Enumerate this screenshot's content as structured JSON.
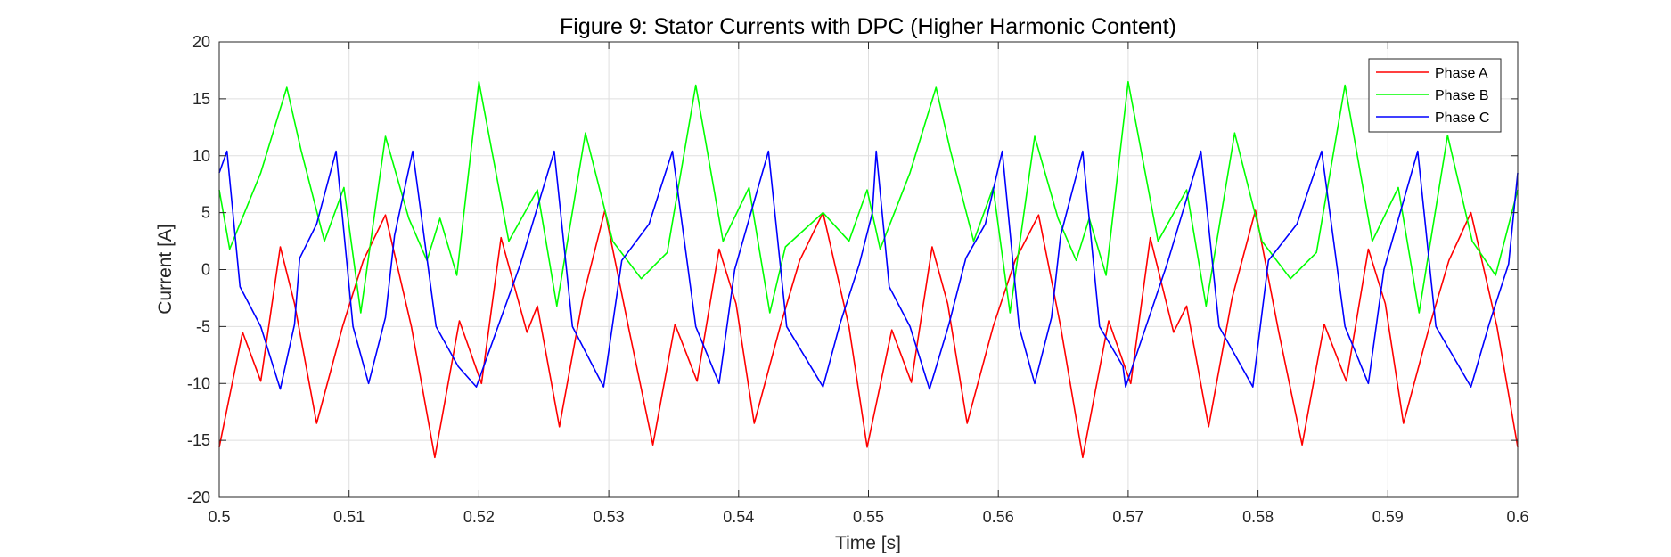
{
  "chart_data": {
    "type": "line",
    "title": "Figure 9: Stator Currents with DPC (Higher Harmonic Content)",
    "xlabel": "Time [s]",
    "ylabel": "Current [A]",
    "xlim": [
      0.5,
      0.6
    ],
    "ylim": [
      -20,
      20
    ],
    "xticks": [
      0.5,
      0.51,
      0.52,
      0.53,
      0.54,
      0.55,
      0.56,
      0.57,
      0.58,
      0.59,
      0.6
    ],
    "xtick_labels": [
      "0.5",
      "0.51",
      "0.52",
      "0.53",
      "0.54",
      "0.55",
      "0.56",
      "0.57",
      "0.58",
      "0.59",
      "0.6"
    ],
    "yticks": [
      -20,
      -15,
      -10,
      -5,
      0,
      5,
      10,
      15,
      20
    ],
    "ytick_labels": [
      "-20",
      "-15",
      "-10",
      "-5",
      "0",
      "5",
      "10",
      "15",
      "20"
    ],
    "grid": true,
    "legend_position": "top-right",
    "series": [
      {
        "name": "Phase A",
        "color": "#ff0000",
        "points": [
          [
            0.5,
            -15.6
          ],
          [
            0.5018,
            -5.5
          ],
          [
            0.5032,
            -9.8
          ],
          [
            0.5047,
            2.0
          ],
          [
            0.5058,
            -3.0
          ],
          [
            0.5075,
            -13.5
          ],
          [
            0.5095,
            -5.0
          ],
          [
            0.5111,
            0.8
          ],
          [
            0.5128,
            4.8
          ],
          [
            0.5148,
            -5.0
          ],
          [
            0.5166,
            -16.5
          ],
          [
            0.5185,
            -4.5
          ],
          [
            0.5202,
            -10.0
          ],
          [
            0.5217,
            2.8
          ],
          [
            0.5237,
            -5.5
          ],
          [
            0.5245,
            -3.2
          ],
          [
            0.5262,
            -13.8
          ],
          [
            0.528,
            -2.5
          ],
          [
            0.5297,
            5.2
          ],
          [
            0.5316,
            -5.5
          ],
          [
            0.5334,
            -15.4
          ],
          [
            0.5351,
            -4.8
          ],
          [
            0.5368,
            -9.8
          ],
          [
            0.5385,
            1.8
          ],
          [
            0.5398,
            -3.0
          ],
          [
            0.5412,
            -13.5
          ],
          [
            0.5432,
            -5.0
          ],
          [
            0.5447,
            0.8
          ],
          [
            0.5465,
            5.0
          ],
          [
            0.5485,
            -5.0
          ],
          [
            0.5499,
            -15.6
          ],
          [
            0.5518,
            -5.3
          ],
          [
            0.5533,
            -9.9
          ],
          [
            0.5549,
            2.0
          ],
          [
            0.5561,
            -3.0
          ],
          [
            0.5576,
            -13.5
          ],
          [
            0.5596,
            -5.0
          ],
          [
            0.5613,
            0.8
          ],
          [
            0.5631,
            4.8
          ],
          [
            0.5648,
            -5.0
          ],
          [
            0.5665,
            -16.5
          ],
          [
            0.5685,
            -4.5
          ],
          [
            0.5702,
            -10.0
          ],
          [
            0.5717,
            2.8
          ],
          [
            0.5735,
            -5.5
          ],
          [
            0.5745,
            -3.2
          ],
          [
            0.5762,
            -13.8
          ],
          [
            0.578,
            -2.5
          ],
          [
            0.5798,
            5.2
          ],
          [
            0.5816,
            -5.5
          ],
          [
            0.5834,
            -15.4
          ],
          [
            0.5851,
            -4.8
          ],
          [
            0.5868,
            -9.8
          ],
          [
            0.5885,
            1.8
          ],
          [
            0.5898,
            -3.0
          ],
          [
            0.5912,
            -13.5
          ],
          [
            0.5932,
            -5.0
          ],
          [
            0.5947,
            0.8
          ],
          [
            0.5964,
            5.0
          ],
          [
            0.5984,
            -5.0
          ],
          [
            0.6,
            -15.6
          ]
        ]
      },
      {
        "name": "Phase B",
        "color": "#00ff00",
        "points": [
          [
            0.5,
            7.0
          ],
          [
            0.5008,
            1.8
          ],
          [
            0.5032,
            8.5
          ],
          [
            0.5052,
            16.0
          ],
          [
            0.5063,
            10.5
          ],
          [
            0.5081,
            2.5
          ],
          [
            0.5096,
            7.2
          ],
          [
            0.5109,
            -3.8
          ],
          [
            0.5128,
            11.7
          ],
          [
            0.5146,
            4.5
          ],
          [
            0.516,
            0.8
          ],
          [
            0.517,
            4.5
          ],
          [
            0.5183,
            -0.5
          ],
          [
            0.52,
            16.5
          ],
          [
            0.5223,
            2.5
          ],
          [
            0.5245,
            7.0
          ],
          [
            0.526,
            -3.2
          ],
          [
            0.5282,
            12.0
          ],
          [
            0.5303,
            2.5
          ],
          [
            0.5325,
            -0.8
          ],
          [
            0.5345,
            1.5
          ],
          [
            0.5367,
            16.2
          ],
          [
            0.5388,
            2.5
          ],
          [
            0.5408,
            7.2
          ],
          [
            0.5424,
            -3.8
          ],
          [
            0.5436,
            2.0
          ],
          [
            0.5465,
            5.0
          ],
          [
            0.5485,
            2.5
          ],
          [
            0.5499,
            7.0
          ],
          [
            0.5509,
            1.8
          ],
          [
            0.5532,
            8.5
          ],
          [
            0.5552,
            16.0
          ],
          [
            0.5563,
            10.5
          ],
          [
            0.5581,
            2.5
          ],
          [
            0.5596,
            7.2
          ],
          [
            0.5609,
            -3.8
          ],
          [
            0.5628,
            11.7
          ],
          [
            0.5646,
            4.5
          ],
          [
            0.566,
            0.8
          ],
          [
            0.567,
            4.5
          ],
          [
            0.5683,
            -0.5
          ],
          [
            0.57,
            16.5
          ],
          [
            0.5723,
            2.5
          ],
          [
            0.5745,
            7.0
          ],
          [
            0.576,
            -3.2
          ],
          [
            0.5782,
            12.0
          ],
          [
            0.5803,
            2.5
          ],
          [
            0.5825,
            -0.8
          ],
          [
            0.5845,
            1.5
          ],
          [
            0.5867,
            16.2
          ],
          [
            0.5888,
            2.5
          ],
          [
            0.5908,
            7.2
          ],
          [
            0.5924,
            -3.8
          ],
          [
            0.5946,
            11.8
          ],
          [
            0.5965,
            2.5
          ],
          [
            0.5983,
            -0.5
          ],
          [
            0.6,
            7.0
          ]
        ]
      },
      {
        "name": "Phase C",
        "color": "#0000ff",
        "points": [
          [
            0.5,
            8.5
          ],
          [
            0.5006,
            10.4
          ],
          [
            0.5016,
            -1.5
          ],
          [
            0.5032,
            -5.0
          ],
          [
            0.5047,
            -10.5
          ],
          [
            0.5058,
            -4.8
          ],
          [
            0.5062,
            1.0
          ],
          [
            0.5075,
            4.0
          ],
          [
            0.509,
            10.4
          ],
          [
            0.5103,
            -5.0
          ],
          [
            0.5115,
            -10.0
          ],
          [
            0.5128,
            -4.2
          ],
          [
            0.5135,
            3.0
          ],
          [
            0.5149,
            10.4
          ],
          [
            0.5167,
            -5.0
          ],
          [
            0.5184,
            -8.5
          ],
          [
            0.5198,
            -10.3
          ],
          [
            0.5232,
            0.5
          ],
          [
            0.5258,
            10.4
          ],
          [
            0.5272,
            -5.0
          ],
          [
            0.5296,
            -10.3
          ],
          [
            0.531,
            0.8
          ],
          [
            0.5331,
            4.0
          ],
          [
            0.5349,
            10.4
          ],
          [
            0.5367,
            -5.0
          ],
          [
            0.5385,
            -10.0
          ],
          [
            0.5397,
            0.0
          ],
          [
            0.5423,
            10.4
          ],
          [
            0.5437,
            -5.0
          ],
          [
            0.5465,
            -10.3
          ],
          [
            0.5478,
            -4.8
          ],
          [
            0.5493,
            0.5
          ],
          [
            0.5503,
            5.0
          ],
          [
            0.5506,
            10.4
          ],
          [
            0.5516,
            -1.5
          ],
          [
            0.5532,
            -5.0
          ],
          [
            0.5547,
            -10.5
          ],
          [
            0.5562,
            -4.8
          ],
          [
            0.5575,
            1.0
          ],
          [
            0.559,
            4.0
          ],
          [
            0.5603,
            10.4
          ],
          [
            0.5616,
            -5.0
          ],
          [
            0.5628,
            -10.0
          ],
          [
            0.5641,
            -4.2
          ],
          [
            0.5648,
            3.0
          ],
          [
            0.5665,
            10.4
          ],
          [
            0.5678,
            -5.0
          ],
          [
            0.5696,
            -8.5
          ],
          [
            0.5698,
            -10.3
          ],
          [
            0.573,
            0.5
          ],
          [
            0.5756,
            10.4
          ],
          [
            0.577,
            -5.0
          ],
          [
            0.5796,
            -10.3
          ],
          [
            0.5808,
            0.8
          ],
          [
            0.583,
            4.0
          ],
          [
            0.5849,
            10.4
          ],
          [
            0.5867,
            -5.0
          ],
          [
            0.5885,
            -10.0
          ],
          [
            0.5897,
            0.0
          ],
          [
            0.5923,
            10.4
          ],
          [
            0.5937,
            -5.0
          ],
          [
            0.5964,
            -10.3
          ],
          [
            0.5978,
            -4.8
          ],
          [
            0.5993,
            0.5
          ],
          [
            0.6,
            8.5
          ]
        ]
      }
    ]
  }
}
